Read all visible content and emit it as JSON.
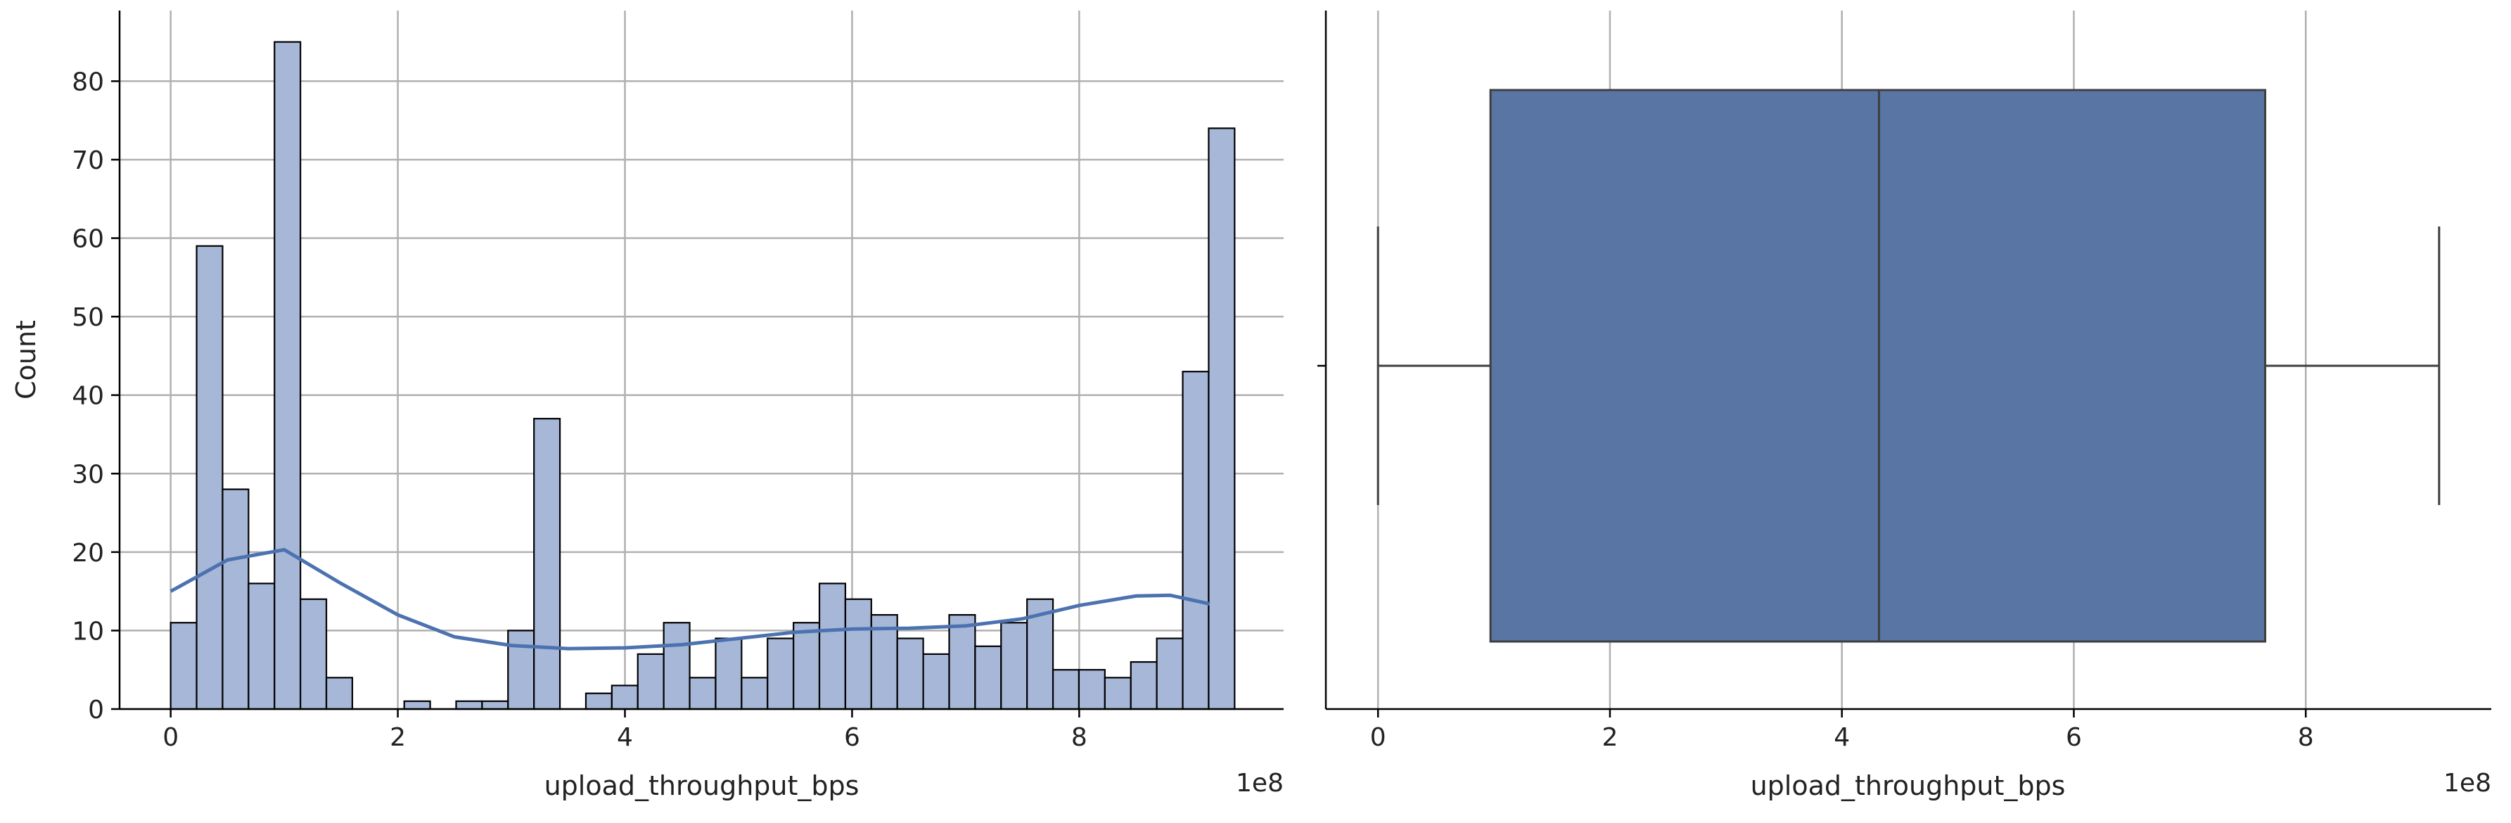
{
  "chart_data": [
    {
      "type": "bar",
      "subtype": "histogram_with_kde",
      "xlabel": "upload_throughput_bps",
      "ylabel": "Count",
      "x_offset_label": "1e8",
      "xlim": [
        -0.45,
        9.8
      ],
      "ylim": [
        0,
        89
      ],
      "x_ticks": [
        0,
        2,
        4,
        6,
        8
      ],
      "y_ticks": [
        0,
        10,
        20,
        30,
        40,
        50,
        60,
        70,
        80
      ],
      "grid": true,
      "bin_start": 0,
      "bin_width": 0.2285,
      "counts": [
        11,
        59,
        28,
        16,
        85,
        14,
        4,
        0,
        0,
        1,
        0,
        1,
        1,
        10,
        37,
        0,
        2,
        3,
        7,
        11,
        4,
        9,
        4,
        9,
        11,
        16,
        14,
        12,
        9,
        7,
        12,
        8,
        11,
        14,
        5,
        5,
        4,
        6,
        9,
        43,
        74
      ],
      "colors": {
        "bar": "#a7b7d8",
        "edge": "#000000",
        "kde": "#4c72b0",
        "grid": "#b0b0b0"
      },
      "kde": {
        "x": [
          0,
          0.5,
          1.0,
          1.5,
          2.0,
          2.5,
          3.0,
          3.5,
          4.0,
          4.5,
          5.0,
          5.5,
          6.0,
          6.5,
          7.0,
          7.5,
          8.0,
          8.5,
          8.8,
          9.15
        ],
        "y": [
          15,
          19,
          20.3,
          16,
          12,
          9.2,
          8.1,
          7.7,
          7.8,
          8.2,
          9.0,
          9.8,
          10.2,
          10.3,
          10.6,
          11.5,
          13.2,
          14.4,
          14.5,
          13.4
        ]
      }
    },
    {
      "type": "box",
      "xlabel": "upload_throughput_bps",
      "x_offset_label": "1e8",
      "xlim": [
        -0.45,
        9.6
      ],
      "x_ticks": [
        0,
        2,
        4,
        6,
        8
      ],
      "grid": true,
      "whisker_low": 0.0,
      "q1": 0.97,
      "median": 4.32,
      "q3": 7.65,
      "whisker_high": 9.15,
      "colors": {
        "box": "#5875a4",
        "line": "#3f3f3f",
        "grid": "#b0b0b0"
      }
    }
  ]
}
